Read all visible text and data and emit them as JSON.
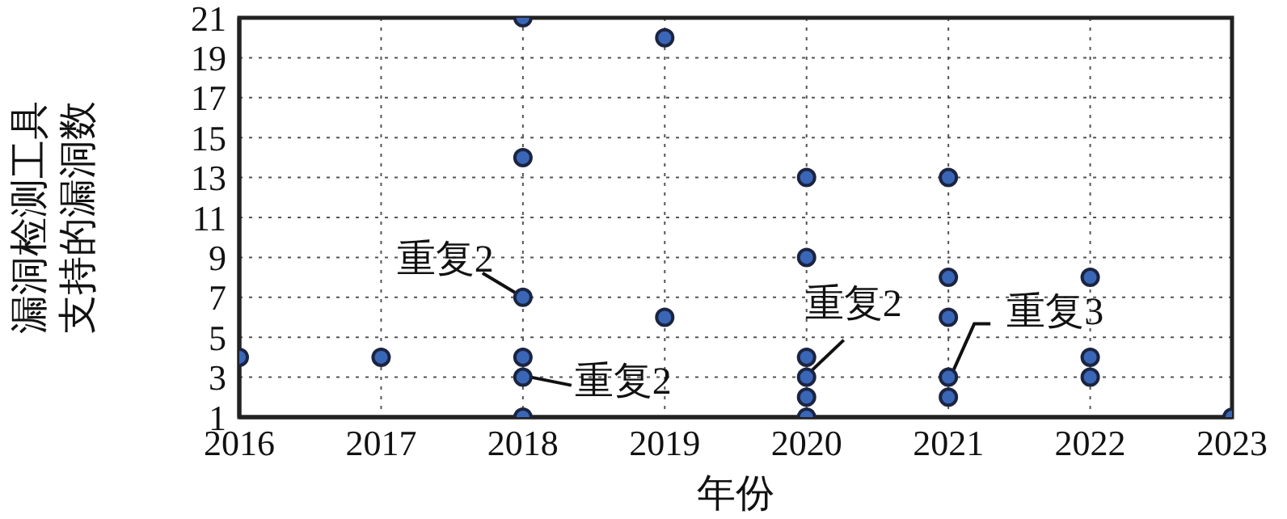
{
  "chart_data": {
    "type": "scatter",
    "xlabel": "年份",
    "ylabel": "漏洞检测工具支持的漏洞数",
    "x": [
      2016,
      2017,
      2018,
      2018,
      2018,
      2018,
      2018,
      2018,
      2019,
      2019,
      2020,
      2020,
      2020,
      2020,
      2020,
      2020,
      2021,
      2021,
      2021,
      2021,
      2021,
      2022,
      2022,
      2022,
      2023
    ],
    "series": [
      {
        "color": "#3a66b8",
        "values": [
          4,
          4,
          21,
          14,
          7,
          4,
          3,
          1,
          20,
          6,
          13,
          9,
          4,
          3,
          2,
          1,
          13,
          8,
          6,
          3,
          2,
          8,
          4,
          3,
          1
        ]
      }
    ],
    "xlim": [
      2016,
      2023
    ],
    "xticks": [
      2016,
      2017,
      2018,
      2019,
      2020,
      2021,
      2022,
      2023
    ],
    "ylim": [
      1,
      21
    ],
    "yticks": [
      1,
      3,
      5,
      7,
      9,
      11,
      13,
      15,
      17,
      19,
      21
    ],
    "grid": true,
    "marker": "circle",
    "annotations": [
      {
        "text": "重复2",
        "x": 2018,
        "y": 7
      },
      {
        "text": "重复2",
        "x": 2018,
        "y": 3
      },
      {
        "text": "重复2",
        "x": 2020,
        "y": 3
      },
      {
        "text": "重复3",
        "x": 2021,
        "y": 3
      }
    ]
  }
}
